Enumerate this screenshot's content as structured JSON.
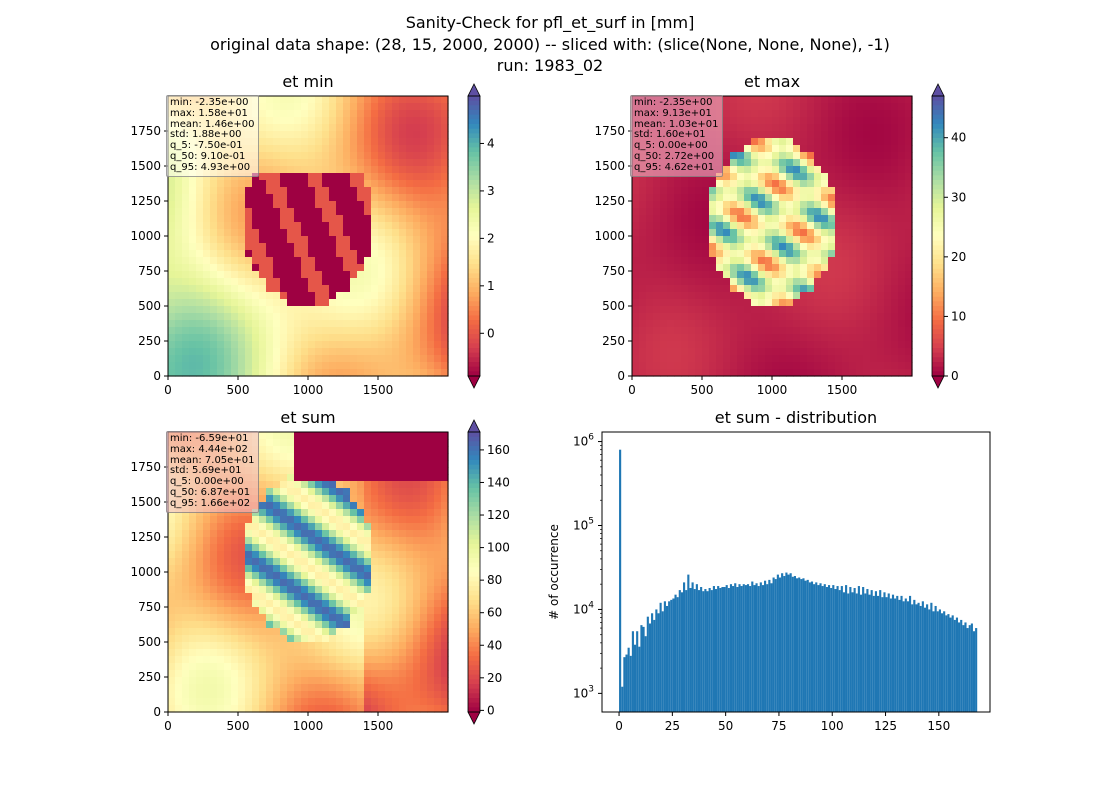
{
  "figure": {
    "title_lines": [
      "Sanity-Check for pfl_et_surf in [mm]",
      "original data shape: (28, 15, 2000, 2000) -- sliced with: (slice(None, None, None), -1)",
      "run: 1983_02"
    ]
  },
  "chart_data": [
    {
      "type": "heatmap",
      "title": "et min",
      "xlim": [
        0,
        2000
      ],
      "ylim": [
        0,
        2000
      ],
      "xticks": [
        "0",
        "500",
        "1000",
        "1500"
      ],
      "yticks": [
        "0",
        "250",
        "500",
        "750",
        "1000",
        "1250",
        "1500",
        "1750"
      ],
      "colormap": "Spectral",
      "colorbar": {
        "vmin": -0.9,
        "vmax": 5.0,
        "ticks": [
          "0",
          "1",
          "2",
          "3",
          "4"
        ],
        "extend": "both"
      },
      "stats": [
        "min: -2.35e+00",
        "max: 1.58e+01",
        "mean: 1.46e+00",
        "std: 1.88e+00",
        "q_5: -7.50e-01",
        "q_50: 9.10e-01",
        "q_95: 4.93e+00"
      ]
    },
    {
      "type": "heatmap",
      "title": "et max",
      "xlim": [
        0,
        2000
      ],
      "ylim": [
        0,
        2000
      ],
      "xticks": [
        "0",
        "500",
        "1000",
        "1500"
      ],
      "yticks": [
        "0",
        "250",
        "500",
        "750",
        "1000",
        "1250",
        "1500",
        "1750"
      ],
      "colormap": "Spectral",
      "colorbar": {
        "vmin": 0,
        "vmax": 47,
        "ticks": [
          "0",
          "10",
          "20",
          "30",
          "40"
        ],
        "extend": "both"
      },
      "stats": [
        "min: -2.35e+00",
        "max: 9.13e+01",
        "mean: 1.03e+01",
        "std: 1.60e+01",
        "q_5: 0.00e+00",
        "q_50: 2.72e+00",
        "q_95: 4.62e+01"
      ]
    },
    {
      "type": "heatmap",
      "title": "et sum",
      "xlim": [
        0,
        2000
      ],
      "ylim": [
        0,
        2000
      ],
      "xticks": [
        "0",
        "500",
        "1000",
        "1500"
      ],
      "yticks": [
        "0",
        "250",
        "500",
        "750",
        "1000",
        "1250",
        "1500",
        "1750"
      ],
      "colormap": "Spectral",
      "colorbar": {
        "vmin": -1,
        "vmax": 171,
        "ticks": [
          "0",
          "20",
          "40",
          "60",
          "80",
          "100",
          "120",
          "140",
          "160"
        ],
        "extend": "both"
      },
      "stats": [
        "min: -6.59e+01",
        "max: 4.44e+02",
        "mean: 7.05e+01",
        "std: 5.69e+01",
        "q_5: 0.00e+00",
        "q_50: 6.87e+01",
        "q_95: 1.66e+02"
      ]
    },
    {
      "type": "bar",
      "title": "et sum - distribution",
      "ylabel": "# of occurrence",
      "xlabel": "",
      "yscale": "log",
      "xlim": [
        -8,
        174
      ],
      "ylim": [
        600,
        1300000
      ],
      "xticks": [
        "0",
        "25",
        "50",
        "75",
        "100",
        "125",
        "150"
      ],
      "ytick_values": [
        1000,
        10000,
        100000,
        1000000
      ],
      "bar_color": "#1f77b4",
      "bins": {
        "start": 0,
        "width": 1,
        "count": 166
      },
      "values": [
        800000,
        1200,
        2700,
        2900,
        3500,
        2800,
        5500,
        3800,
        5500,
        3600,
        6500,
        6200,
        4800,
        8200,
        6800,
        9000,
        7500,
        10000,
        9000,
        12000,
        9500,
        12500,
        11000,
        12500,
        13000,
        13500,
        15000,
        14000,
        17000,
        16000,
        21000,
        17000,
        26000,
        18000,
        21000,
        17500,
        20000,
        17000,
        18500,
        16500,
        17500,
        16500,
        18000,
        17000,
        19000,
        17500,
        19000,
        18000,
        18500,
        18500,
        19500,
        18000,
        20000,
        19000,
        20500,
        18500,
        20000,
        19000,
        20000,
        19500,
        20000,
        19000,
        21500,
        19500,
        20500,
        19000,
        21000,
        19500,
        22000,
        20000,
        22500,
        20500,
        24000,
        23000,
        26000,
        24000,
        27000,
        25000,
        27500,
        26000,
        27000,
        24500,
        25000,
        23500,
        24000,
        23000,
        23500,
        22000,
        22500,
        21000,
        21500,
        20000,
        21000,
        19500,
        20500,
        19000,
        20000,
        18500,
        19500,
        18000,
        19500,
        17500,
        19000,
        17000,
        19000,
        16000,
        19500,
        15500,
        18500,
        16000,
        18000,
        15500,
        19000,
        15000,
        18500,
        15500,
        17500,
        15000,
        17000,
        14500,
        16500,
        14500,
        17000,
        14000,
        16000,
        14000,
        15500,
        13500,
        15000,
        13500,
        14500,
        13000,
        14500,
        12500,
        13500,
        12500,
        14500,
        11500,
        13000,
        11500,
        12000,
        11000,
        12500,
        10500,
        11500,
        10000,
        12000,
        9500,
        11000,
        9500,
        10000,
        9000,
        9500,
        8500,
        8800,
        8000,
        8500,
        7500,
        8000,
        7000,
        7500,
        6500,
        7000,
        6000,
        6500,
        6800,
        5500,
        6000
      ]
    }
  ]
}
